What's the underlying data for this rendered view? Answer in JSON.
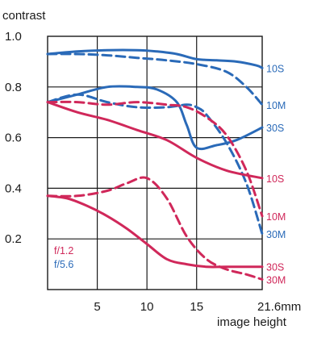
{
  "chart_data": {
    "type": "line",
    "title": "",
    "ylabel": "contrast",
    "xlabel": "image height",
    "ylim": [
      0.0,
      1.0
    ],
    "xlim": [
      0,
      21.6
    ],
    "yticks": [
      {
        "value": 1.0,
        "label": "1.0"
      },
      {
        "value": 0.8,
        "label": "0.8"
      },
      {
        "value": 0.6,
        "label": "0.6"
      },
      {
        "value": 0.4,
        "label": "0.4"
      },
      {
        "value": 0.2,
        "label": "0.2"
      }
    ],
    "xticks": [
      {
        "value": 5,
        "label": "5"
      },
      {
        "value": 10,
        "label": "10"
      },
      {
        "value": 15,
        "label": "15"
      },
      {
        "value": 21.6,
        "label": "21.6mm"
      }
    ],
    "grid": true,
    "legend": {
      "placement": "bottom-left",
      "entries": [
        {
          "label": "f/1.2",
          "color": "#d0285a"
        },
        {
          "label": "f/5.6",
          "color": "#2a6ab8"
        }
      ]
    },
    "series": [
      {
        "name": "10S",
        "aperture": "f/5.6",
        "style": "solid",
        "color": "#2a6ab8",
        "x": [
          0,
          3,
          6,
          9,
          11,
          13,
          15,
          17,
          19,
          21,
          21.6
        ],
        "y": [
          0.93,
          0.94,
          0.945,
          0.945,
          0.94,
          0.93,
          0.91,
          0.905,
          0.9,
          0.885,
          0.875
        ]
      },
      {
        "name": "10M",
        "aperture": "f/5.6",
        "style": "dashed",
        "color": "#2a6ab8",
        "x": [
          0,
          3,
          6,
          9,
          12,
          15,
          18,
          20,
          21.6
        ],
        "y": [
          0.93,
          0.93,
          0.925,
          0.915,
          0.905,
          0.89,
          0.86,
          0.8,
          0.73
        ]
      },
      {
        "name": "30S",
        "aperture": "f/5.6",
        "style": "solid",
        "color": "#2a6ab8",
        "x": [
          0,
          3,
          6,
          9,
          11,
          13,
          14,
          15,
          17,
          19,
          21.6
        ],
        "y": [
          0.74,
          0.77,
          0.8,
          0.8,
          0.79,
          0.74,
          0.65,
          0.56,
          0.57,
          0.59,
          0.64
        ]
      },
      {
        "name": "30M",
        "aperture": "f/5.6",
        "style": "dashed",
        "color": "#2a6ab8",
        "x": [
          0,
          3,
          6,
          9,
          12,
          14,
          15,
          16,
          18,
          20,
          21.6
        ],
        "y": [
          0.74,
          0.77,
          0.74,
          0.72,
          0.72,
          0.73,
          0.72,
          0.69,
          0.58,
          0.42,
          0.22
        ]
      },
      {
        "name": "10S",
        "aperture": "f/1.2",
        "style": "solid",
        "color": "#d0285a",
        "x": [
          0,
          3,
          6,
          9,
          12,
          15,
          18,
          21.6
        ],
        "y": [
          0.74,
          0.7,
          0.67,
          0.63,
          0.59,
          0.52,
          0.47,
          0.44
        ]
      },
      {
        "name": "10M",
        "aperture": "f/1.2",
        "style": "dashed",
        "color": "#d0285a",
        "x": [
          0,
          3,
          6,
          9,
          12,
          14,
          16,
          18,
          20,
          21.6
        ],
        "y": [
          0.74,
          0.74,
          0.73,
          0.74,
          0.73,
          0.72,
          0.68,
          0.61,
          0.47,
          0.29
        ]
      },
      {
        "name": "30S",
        "aperture": "f/1.2",
        "style": "solid",
        "color": "#d0285a",
        "x": [
          0,
          2,
          4,
          6,
          8,
          10,
          12,
          14,
          16,
          18,
          21.6
        ],
        "y": [
          0.37,
          0.36,
          0.33,
          0.29,
          0.24,
          0.18,
          0.12,
          0.1,
          0.09,
          0.09,
          0.09
        ]
      },
      {
        "name": "30M",
        "aperture": "f/1.2",
        "style": "dashed",
        "color": "#d0285a",
        "x": [
          0,
          3,
          6,
          8,
          10,
          12,
          14,
          16,
          18,
          20,
          21.6
        ],
        "y": [
          0.37,
          0.37,
          0.39,
          0.42,
          0.44,
          0.36,
          0.21,
          0.12,
          0.08,
          0.06,
          0.04
        ]
      }
    ]
  }
}
